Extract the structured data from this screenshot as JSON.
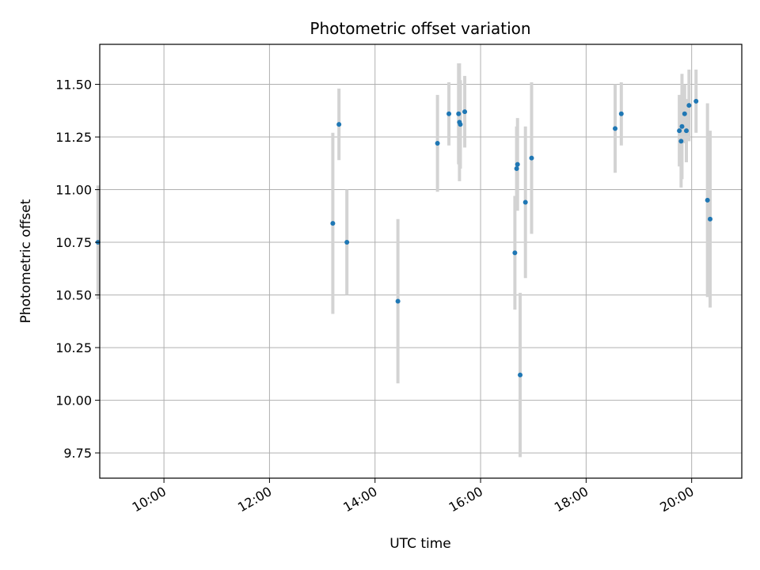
{
  "chart_data": {
    "type": "scatter",
    "title": "Photometric offset variation",
    "xlabel": "UTC time",
    "ylabel": "Photometric offset",
    "x_is_time": true,
    "xlim": [
      "08:47",
      "20:57"
    ],
    "ylim": [
      9.63,
      11.69
    ],
    "xticks": [
      "10:00",
      "12:00",
      "14:00",
      "16:00",
      "18:00",
      "20:00"
    ],
    "yticks": [
      9.75,
      10.0,
      10.25,
      10.5,
      10.75,
      11.0,
      11.25,
      11.5
    ],
    "ytick_labels": [
      "9.75",
      "10.00",
      "10.25",
      "10.50",
      "10.75",
      "11.00",
      "11.25",
      "11.50"
    ],
    "grid": true,
    "colors": {
      "point": "#1f77b4",
      "errorbar": "#d3d3d3",
      "grid": "#b0b0b0"
    },
    "points": [
      {
        "x": "08:45",
        "y": 10.75,
        "yerr": 0.27
      },
      {
        "x": "13:12",
        "y": 10.84,
        "yerr": 0.43
      },
      {
        "x": "13:19",
        "y": 11.31,
        "yerr": 0.17
      },
      {
        "x": "13:28",
        "y": 10.75,
        "yerr": 0.25
      },
      {
        "x": "14:26",
        "y": 10.47,
        "yerr": 0.39
      },
      {
        "x": "15:11",
        "y": 11.22,
        "yerr": 0.23
      },
      {
        "x": "15:24",
        "y": 11.36,
        "yerr": 0.15
      },
      {
        "x": "15:35",
        "y": 11.36,
        "yerr": 0.24
      },
      {
        "x": "15:36",
        "y": 11.32,
        "yerr": 0.28
      },
      {
        "x": "15:37",
        "y": 11.31,
        "yerr": 0.21
      },
      {
        "x": "15:42",
        "y": 11.37,
        "yerr": 0.17
      },
      {
        "x": "16:39",
        "y": 10.7,
        "yerr": 0.27
      },
      {
        "x": "16:41",
        "y": 11.1,
        "yerr": 0.2
      },
      {
        "x": "16:42",
        "y": 11.12,
        "yerr": 0.22
      },
      {
        "x": "16:45",
        "y": 10.12,
        "yerr": 0.39
      },
      {
        "x": "16:51",
        "y": 10.94,
        "yerr": 0.36
      },
      {
        "x": "16:58",
        "y": 11.15,
        "yerr": 0.36
      },
      {
        "x": "18:33",
        "y": 11.29,
        "yerr": 0.21
      },
      {
        "x": "18:40",
        "y": 11.36,
        "yerr": 0.15
      },
      {
        "x": "19:46",
        "y": 11.28,
        "yerr": 0.17
      },
      {
        "x": "19:48",
        "y": 11.23,
        "yerr": 0.22
      },
      {
        "x": "19:49",
        "y": 11.3,
        "yerr": 0.25
      },
      {
        "x": "19:52",
        "y": 11.36,
        "yerr": 0.14
      },
      {
        "x": "19:54",
        "y": 11.28,
        "yerr": 0.15
      },
      {
        "x": "19:57",
        "y": 11.4,
        "yerr": 0.17
      },
      {
        "x": "20:05",
        "y": 11.42,
        "yerr": 0.15
      },
      {
        "x": "20:18",
        "y": 10.95,
        "yerr": 0.46
      },
      {
        "x": "20:21",
        "y": 10.86,
        "yerr": 0.42
      }
    ]
  }
}
